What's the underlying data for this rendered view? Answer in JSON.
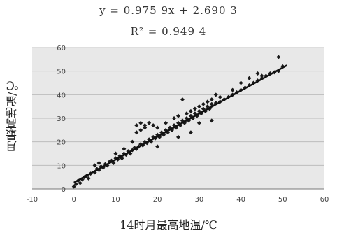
{
  "equation": {
    "line1": "y = 0.975 9x + 2.690 3",
    "line2": "R² = 0.949 4"
  },
  "chart_data": {
    "type": "scatter",
    "title": "",
    "xlabel": "14时月最高地温/℃",
    "ylabel": "月最高地温/℃",
    "xlim": [
      -10,
      60
    ],
    "ylim": [
      0,
      60
    ],
    "xticks": [
      -10,
      0,
      10,
      20,
      30,
      40,
      50,
      60
    ],
    "yticks": [
      0,
      10,
      20,
      30,
      40,
      50,
      60
    ],
    "grid": true,
    "trendline": {
      "slope": 0.9759,
      "intercept": 2.6903,
      "x_range": [
        0,
        51
      ]
    },
    "series": [
      {
        "points": [
          [
            0,
            1
          ],
          [
            0.5,
            2
          ],
          [
            1,
            3.5
          ],
          [
            1.5,
            2.5
          ],
          [
            2,
            4
          ],
          [
            2.5,
            5
          ],
          [
            3,
            5.5
          ],
          [
            3.5,
            4.5
          ],
          [
            4,
            6.5
          ],
          [
            5,
            7
          ],
          [
            5.5,
            8.5
          ],
          [
            6,
            8
          ],
          [
            6.5,
            9.5
          ],
          [
            7,
            9
          ],
          [
            7.5,
            10.5
          ],
          [
            8,
            10
          ],
          [
            8.5,
            11.5
          ],
          [
            9,
            12
          ],
          [
            9.5,
            11
          ],
          [
            10,
            13
          ],
          [
            10.5,
            12.5
          ],
          [
            11,
            14
          ],
          [
            11.5,
            13
          ],
          [
            12,
            15
          ],
          [
            12.5,
            14.5
          ],
          [
            13,
            16
          ],
          [
            13.5,
            15
          ],
          [
            14,
            16.5
          ],
          [
            14.5,
            17.5
          ],
          [
            15,
            17
          ],
          [
            15.5,
            18
          ],
          [
            16,
            19
          ],
          [
            16.5,
            18.5
          ],
          [
            17,
            20
          ],
          [
            17.5,
            19.5
          ],
          [
            18,
            21
          ],
          [
            18.5,
            20
          ],
          [
            19,
            22
          ],
          [
            19.5,
            21.5
          ],
          [
            20,
            23
          ],
          [
            20.5,
            22
          ],
          [
            21,
            24
          ],
          [
            21.5,
            23
          ],
          [
            22,
            25
          ],
          [
            22.5,
            24
          ],
          [
            23,
            26
          ],
          [
            23.5,
            25
          ],
          [
            24,
            27
          ],
          [
            24.5,
            26
          ],
          [
            25,
            28
          ],
          [
            25.5,
            27
          ],
          [
            26,
            29
          ],
          [
            26.5,
            28
          ],
          [
            27,
            30
          ],
          [
            27.5,
            29
          ],
          [
            28,
            31
          ],
          [
            28.5,
            30
          ],
          [
            29,
            32
          ],
          [
            29.5,
            31
          ],
          [
            30,
            33
          ],
          [
            30.5,
            32
          ],
          [
            31,
            34
          ],
          [
            31.5,
            33
          ],
          [
            32,
            35
          ],
          [
            32.5,
            34
          ],
          [
            33,
            36
          ],
          [
            34,
            36.5
          ],
          [
            35,
            37
          ],
          [
            36,
            38
          ],
          [
            37,
            39
          ],
          [
            38,
            40
          ],
          [
            39,
            41
          ],
          [
            40,
            42
          ],
          [
            41,
            43
          ],
          [
            42,
            44
          ],
          [
            43,
            45
          ],
          [
            44,
            46
          ],
          [
            45,
            47
          ],
          [
            46,
            48
          ],
          [
            47,
            49
          ],
          [
            48,
            49.5
          ],
          [
            49,
            50
          ],
          [
            50,
            52
          ],
          [
            5,
            10
          ],
          [
            6,
            11
          ],
          [
            10,
            15
          ],
          [
            12,
            17
          ],
          [
            14,
            20
          ],
          [
            15,
            24
          ],
          [
            16,
            25
          ],
          [
            17,
            26
          ],
          [
            15,
            27
          ],
          [
            16,
            28
          ],
          [
            17,
            27
          ],
          [
            18,
            28
          ],
          [
            19,
            27
          ],
          [
            20,
            26
          ],
          [
            22,
            28
          ],
          [
            24,
            30
          ],
          [
            25,
            31
          ],
          [
            26,
            38
          ],
          [
            27,
            32
          ],
          [
            28,
            33
          ],
          [
            29,
            34
          ],
          [
            30,
            35
          ],
          [
            31,
            36
          ],
          [
            32,
            37
          ],
          [
            33,
            38
          ],
          [
            34,
            40
          ],
          [
            35,
            39
          ],
          [
            38,
            42
          ],
          [
            40,
            45
          ],
          [
            42,
            47
          ],
          [
            44,
            49
          ],
          [
            49,
            56
          ],
          [
            45,
            48
          ],
          [
            30,
            28
          ],
          [
            25,
            22
          ],
          [
            20,
            18
          ],
          [
            28,
            24
          ],
          [
            33,
            29
          ]
        ]
      }
    ]
  }
}
